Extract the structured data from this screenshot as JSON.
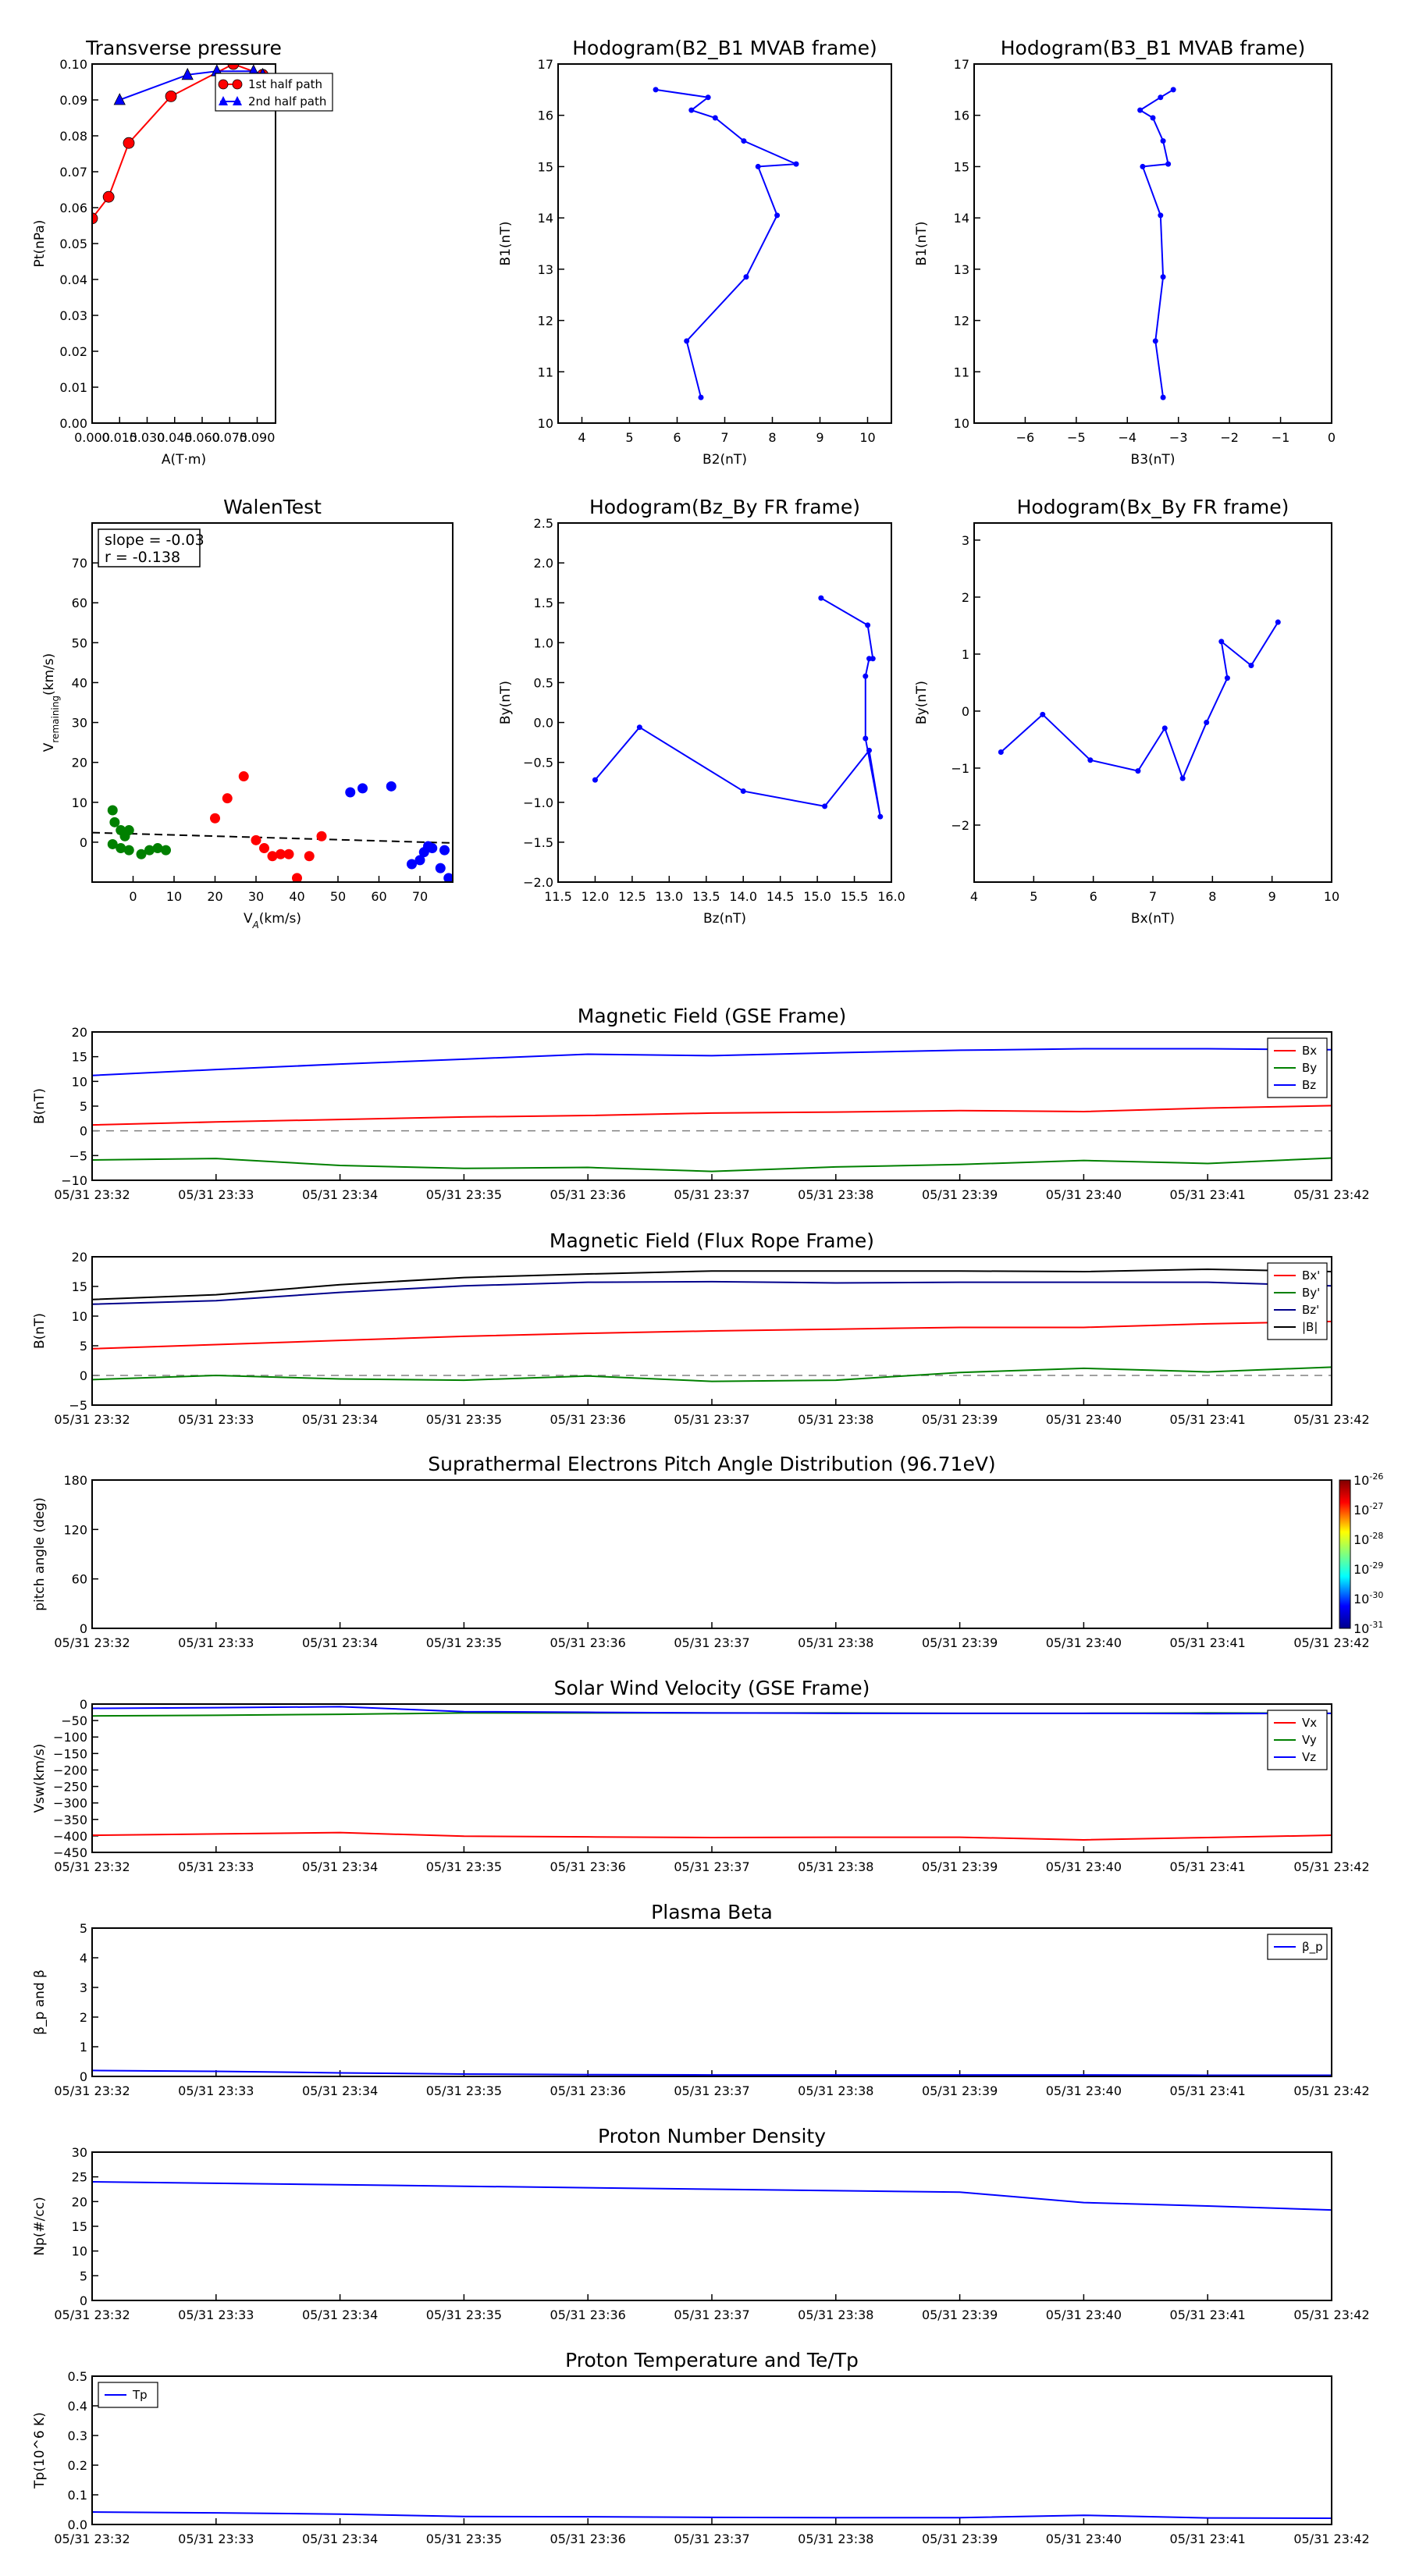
{
  "time_ticks": [
    "05/31 23:32",
    "05/31 23:33",
    "05/31 23:34",
    "05/31 23:35",
    "05/31 23:36",
    "05/31 23:37",
    "05/31 23:38",
    "05/31 23:39",
    "05/31 23:40",
    "05/31 23:41",
    "05/31 23:42"
  ],
  "colors": {
    "red": "#ff0000",
    "green": "#008000",
    "blue": "#0000ff",
    "black": "#000000",
    "dashed": "#808080",
    "navy": "#00008b"
  },
  "chart_data": [
    {
      "id": "transverse-pressure",
      "type": "scatter",
      "title": "Transverse pressure",
      "xlabel": "A(T·m)",
      "ylabel": "Pt(nPa)",
      "xlim": [
        0,
        0.1
      ],
      "ylim": [
        0,
        0.1
      ],
      "xticks": [
        0,
        0.015,
        0.03,
        0.045,
        0.06,
        0.075,
        0.09
      ],
      "xtick_labels": [
        "0.000",
        "0.015",
        "0.030",
        "0.045",
        "0.060",
        "0.075",
        "0.090"
      ],
      "yticks": [
        0,
        0.01,
        0.02,
        0.03,
        0.04,
        0.05,
        0.06,
        0.07,
        0.08,
        0.09,
        0.1
      ],
      "ytick_labels": [
        "0.00",
        "0.01",
        "0.02",
        "0.03",
        "0.04",
        "0.05",
        "0.06",
        "0.07",
        "0.08",
        "0.09",
        "0.10"
      ],
      "legend_position": "top-center",
      "series": [
        {
          "name": "1st half path",
          "color": "red",
          "marker": "circle",
          "x": [
            0.0,
            0.009,
            0.02,
            0.043,
            0.077,
            0.093
          ],
          "y": [
            0.057,
            0.063,
            0.078,
            0.091,
            0.1,
            0.097
          ]
        },
        {
          "name": "2nd half path",
          "color": "blue",
          "marker": "triangle",
          "x": [
            0.015,
            0.052,
            0.068,
            0.088,
            0.093
          ],
          "y": [
            0.09,
            0.097,
            0.098,
            0.098,
            0.097
          ]
        }
      ]
    },
    {
      "id": "hodogram-b2-b1",
      "type": "line",
      "title": "Hodogram(B2_B1 MVAB frame)",
      "xlabel": "B2(nT)",
      "ylabel": "B1(nT)",
      "xlim": [
        3.5,
        10.5
      ],
      "ylim": [
        10,
        17
      ],
      "xticks": [
        4,
        5,
        6,
        7,
        8,
        9,
        10
      ],
      "xtick_labels": [
        "4",
        "5",
        "6",
        "7",
        "8",
        "9",
        "10"
      ],
      "yticks": [
        10,
        11,
        12,
        13,
        14,
        15,
        16,
        17
      ],
      "ytick_labels": [
        "10",
        "11",
        "12",
        "13",
        "14",
        "15",
        "16",
        "17"
      ],
      "series": [
        {
          "name": "B2_B1",
          "color": "blue",
          "marker": "dot",
          "x": [
            6.5,
            6.2,
            7.45,
            8.1,
            7.7,
            8.5,
            7.4,
            6.8,
            6.3,
            6.65,
            5.55
          ],
          "y": [
            10.5,
            11.6,
            12.85,
            14.05,
            15.0,
            15.05,
            15.5,
            15.95,
            16.1,
            16.35,
            16.5
          ]
        }
      ]
    },
    {
      "id": "hodogram-b3-b1",
      "type": "line",
      "title": "Hodogram(B3_B1 MVAB frame)",
      "xlabel": "B3(nT)",
      "ylabel": "B1(nT)",
      "xlim": [
        -7,
        0
      ],
      "ylim": [
        10,
        17
      ],
      "xticks": [
        -6,
        -5,
        -4,
        -3,
        -2,
        -1,
        0
      ],
      "xtick_labels": [
        "−6",
        "−5",
        "−4",
        "−3",
        "−2",
        "−1",
        "0"
      ],
      "yticks": [
        10,
        11,
        12,
        13,
        14,
        15,
        16,
        17
      ],
      "ytick_labels": [
        "10",
        "11",
        "12",
        "13",
        "14",
        "15",
        "16",
        "17"
      ],
      "series": [
        {
          "name": "B3_B1",
          "color": "blue",
          "marker": "dot",
          "x": [
            -3.3,
            -3.45,
            -3.3,
            -3.35,
            -3.7,
            -3.2,
            -3.3,
            -3.5,
            -3.75,
            -3.35,
            -3.1
          ],
          "y": [
            10.5,
            11.6,
            12.85,
            14.05,
            15.0,
            15.05,
            15.5,
            15.95,
            16.1,
            16.35,
            16.5
          ]
        }
      ]
    },
    {
      "id": "walen-test",
      "type": "scatter",
      "title": "WalenTest",
      "xlabel": "V_A(km/s)",
      "ylabel": "V_remaining(km/s)",
      "xlim": [
        -10,
        78
      ],
      "ylim": [
        -10,
        80
      ],
      "xticks": [
        0,
        10,
        20,
        30,
        40,
        50,
        60,
        70
      ],
      "xtick_labels": [
        "0",
        "10",
        "20",
        "30",
        "40",
        "50",
        "60",
        "70"
      ],
      "yticks": [
        0,
        10,
        20,
        30,
        40,
        50,
        60,
        70
      ],
      "ytick_labels": [
        "0",
        "10",
        "20",
        "30",
        "40",
        "50",
        "60",
        "70"
      ],
      "annotation": [
        "slope = -0.03",
        "r = -0.138"
      ],
      "fit_line": {
        "x": [
          -10,
          78
        ],
        "y": [
          2.4,
          -0.2
        ],
        "style": "dashed",
        "color": "black"
      },
      "series": [
        {
          "name": "green",
          "color": "green",
          "x": [
            -5,
            -4.5,
            -3,
            -2,
            -1,
            -5,
            -3,
            -1,
            2,
            4,
            6,
            8
          ],
          "y": [
            8,
            5,
            3,
            1.5,
            3,
            -0.5,
            -1.5,
            -2,
            -3,
            -2,
            -1.5,
            -2
          ]
        },
        {
          "name": "red",
          "color": "red",
          "x": [
            20,
            23,
            27,
            30,
            32,
            34,
            36,
            38,
            40,
            43,
            46
          ],
          "y": [
            6,
            11,
            16.5,
            0.5,
            -1.5,
            -3.5,
            -3,
            -3,
            -9,
            -3.5,
            1.5
          ]
        },
        {
          "name": "blue",
          "color": "blue",
          "x": [
            53,
            56,
            63,
            68,
            70,
            71,
            72,
            73,
            75,
            76,
            77
          ],
          "y": [
            12.5,
            13.5,
            14,
            -5.5,
            -4.5,
            -2.5,
            -1,
            -1.5,
            -6.5,
            -2,
            -9
          ]
        }
      ]
    },
    {
      "id": "hodogram-bz-by",
      "type": "line",
      "title": "Hodogram(Bz_By FR frame)",
      "xlabel": "Bz(nT)",
      "ylabel": "By(nT)",
      "xlim": [
        11.5,
        16
      ],
      "ylim": [
        -2,
        2.5
      ],
      "xticks": [
        11.5,
        12,
        12.5,
        13,
        13.5,
        14,
        14.5,
        15,
        15.5,
        16
      ],
      "xtick_labels": [
        "11.5",
        "12.0",
        "12.5",
        "13.0",
        "13.5",
        "14.0",
        "14.5",
        "15.0",
        "15.5",
        "16.0"
      ],
      "yticks": [
        -2,
        -1.5,
        -1,
        -0.5,
        0,
        0.5,
        1,
        1.5,
        2,
        2.5
      ],
      "ytick_labels": [
        "−2.0",
        "−1.5",
        "−1.0",
        "−0.5",
        "0.0",
        "0.5",
        "1.0",
        "1.5",
        "2.0",
        "2.5"
      ],
      "series": [
        {
          "name": "Bz_By",
          "color": "blue",
          "marker": "dot",
          "x": [
            12.0,
            12.6,
            14.0,
            15.1,
            15.7,
            15.85,
            15.65,
            15.65,
            15.7,
            15.75,
            15.68,
            15.05
          ],
          "y": [
            -0.72,
            -0.06,
            -0.86,
            -1.05,
            -0.35,
            -1.18,
            -0.2,
            0.58,
            0.8,
            0.8,
            1.22,
            1.56
          ]
        }
      ]
    },
    {
      "id": "hodogram-bx-by",
      "type": "line",
      "title": "Hodogram(Bx_By FR frame)",
      "xlabel": "Bx(nT)",
      "ylabel": "By(nT)",
      "xlim": [
        4,
        10
      ],
      "ylim": [
        -3,
        3.3
      ],
      "xticks": [
        4,
        5,
        6,
        7,
        8,
        9,
        10
      ],
      "xtick_labels": [
        "4",
        "5",
        "6",
        "7",
        "8",
        "9",
        "10"
      ],
      "yticks": [
        -2,
        -1,
        0,
        1,
        2,
        3
      ],
      "ytick_labels": [
        "−2",
        "−1",
        "0",
        "1",
        "2",
        "3"
      ],
      "series": [
        {
          "name": "Bx_By",
          "color": "blue",
          "marker": "dot",
          "x": [
            4.45,
            5.15,
            5.95,
            6.75,
            7.2,
            7.5,
            7.9,
            8.25,
            8.15,
            8.65,
            9.1
          ],
          "y": [
            -0.72,
            -0.06,
            -0.86,
            -1.05,
            -0.3,
            -1.18,
            -0.2,
            0.58,
            1.22,
            0.8,
            1.56
          ]
        }
      ]
    },
    {
      "id": "mag-gse",
      "type": "line",
      "title": "Magnetic Field (GSE Frame)",
      "ylabel": "B(nT)",
      "ylim": [
        -10,
        20
      ],
      "yticks": [
        -10,
        -5,
        0,
        5,
        10,
        15,
        20
      ],
      "ytick_labels": [
        "−10",
        "−5",
        "0",
        "5",
        "10",
        "15",
        "20"
      ],
      "legend_position": "top-right",
      "zero_line": true,
      "series": [
        {
          "name": "Bx",
          "color": "red",
          "values": [
            1.2,
            1.8,
            2.3,
            2.8,
            3.1,
            3.6,
            3.8,
            4.1,
            3.9,
            4.6,
            5.1
          ]
        },
        {
          "name": "By",
          "color": "green",
          "values": [
            -5.9,
            -5.6,
            -7.0,
            -7.6,
            -7.4,
            -8.2,
            -7.3,
            -6.8,
            -6.0,
            -6.6,
            -5.5
          ]
        },
        {
          "name": "Bz",
          "color": "blue",
          "values": [
            11.2,
            12.4,
            13.5,
            14.5,
            15.5,
            15.2,
            15.8,
            16.3,
            16.6,
            16.6,
            16.4
          ]
        }
      ]
    },
    {
      "id": "mag-fr",
      "type": "line",
      "title": "Magnetic Field (Flux Rope Frame)",
      "ylabel": "B(nT)",
      "ylim": [
        -5,
        20
      ],
      "yticks": [
        -5,
        0,
        5,
        10,
        15,
        20
      ],
      "ytick_labels": [
        "−5",
        "0",
        "5",
        "10",
        "15",
        "20"
      ],
      "legend_position": "top-right",
      "zero_line": true,
      "series": [
        {
          "name": "Bx'",
          "color": "red",
          "values": [
            4.5,
            5.2,
            5.9,
            6.6,
            7.1,
            7.5,
            7.8,
            8.1,
            8.1,
            8.7,
            9.1
          ]
        },
        {
          "name": "By'",
          "color": "green",
          "values": [
            -0.7,
            0.0,
            -0.6,
            -0.8,
            -0.1,
            -1.0,
            -0.8,
            0.5,
            1.2,
            0.6,
            1.4
          ]
        },
        {
          "name": "Bz'",
          "color": "navy",
          "values": [
            12.0,
            12.6,
            14.0,
            15.1,
            15.7,
            15.8,
            15.6,
            15.7,
            15.7,
            15.7,
            15.1
          ]
        },
        {
          "name": "|B|",
          "color": "black",
          "values": [
            12.8,
            13.6,
            15.3,
            16.5,
            17.1,
            17.6,
            17.6,
            17.6,
            17.5,
            17.9,
            17.5
          ]
        }
      ]
    },
    {
      "id": "pitch-angle",
      "type": "heatmap",
      "title": "Suprathermal Electrons Pitch Angle Distribution (96.71eV)",
      "ylabel": "pitch angle (deg)",
      "ylim": [
        0,
        180
      ],
      "yticks": [
        0,
        60,
        120,
        180
      ],
      "ytick_labels": [
        "0",
        "60",
        "120",
        "180"
      ],
      "colorbar_labels": [
        "10^-26",
        "10^-27",
        "10^-28",
        "10^-29",
        "10^-30",
        "10^-31"
      ],
      "values": []
    },
    {
      "id": "solar-wind",
      "type": "line",
      "title": "Solar Wind Velocity (GSE Frame)",
      "ylabel": "Vsw(km/s)",
      "ylim": [
        -450,
        0
      ],
      "yticks": [
        -450,
        -400,
        -350,
        -300,
        -250,
        -200,
        -150,
        -100,
        -50,
        0
      ],
      "ytick_labels": [
        "−450",
        "−400",
        "−350",
        "−300",
        "−250",
        "−200",
        "−150",
        "−100",
        "−50",
        "0"
      ],
      "legend_position": "top-right",
      "series": [
        {
          "name": "Vx",
          "color": "red",
          "values": [
            -398,
            -394,
            -390,
            -401,
            -403,
            -405,
            -404,
            -404,
            -412,
            -405,
            -398
          ]
        },
        {
          "name": "Vy",
          "color": "green",
          "values": [
            -36,
            -34,
            -31,
            -27,
            -27,
            -27,
            -27,
            -28,
            -28,
            -27,
            -28
          ]
        },
        {
          "name": "Vz",
          "color": "blue",
          "values": [
            -13,
            -11,
            -8,
            -23,
            -25,
            -27,
            -28,
            -28,
            -28,
            -29,
            -28
          ]
        }
      ]
    },
    {
      "id": "plasma-beta",
      "type": "line",
      "title": "Plasma Beta",
      "ylabel": "β_p and β",
      "ylim": [
        0,
        5
      ],
      "yticks": [
        0,
        1,
        2,
        3,
        4,
        5
      ],
      "ytick_labels": [
        "0",
        "1",
        "2",
        "3",
        "4",
        "5"
      ],
      "legend_position": "top-right",
      "series": [
        {
          "name": "β_p",
          "color": "blue",
          "values": [
            0.2,
            0.17,
            0.12,
            0.08,
            0.06,
            0.05,
            0.05,
            0.05,
            0.05,
            0.04,
            0.04
          ]
        }
      ]
    },
    {
      "id": "proton-density",
      "type": "line",
      "title": "Proton Number Density",
      "ylabel": "Np(#/cc)",
      "ylim": [
        0,
        30
      ],
      "yticks": [
        0,
        5,
        10,
        15,
        20,
        25,
        30
      ],
      "ytick_labels": [
        "0",
        "5",
        "10",
        "15",
        "20",
        "25",
        "30"
      ],
      "series": [
        {
          "name": "Np",
          "color": "blue",
          "values": [
            24,
            23.7,
            23.4,
            23.1,
            22.8,
            22.5,
            22.2,
            21.9,
            19.8,
            19.1,
            18.3
          ]
        }
      ]
    },
    {
      "id": "proton-temp",
      "type": "line",
      "title": "Proton Temperature and Te/Tp",
      "ylabel": "Tp(10^6 K)",
      "ylim": [
        0,
        0.5
      ],
      "yticks": [
        0,
        0.1,
        0.2,
        0.3,
        0.4,
        0.5
      ],
      "ytick_labels": [
        "0.0",
        "0.1",
        "0.2",
        "0.3",
        "0.4",
        "0.5"
      ],
      "legend_position": "top-left",
      "series": [
        {
          "name": "Tp",
          "color": "blue",
          "values": [
            0.042,
            0.039,
            0.035,
            0.027,
            0.026,
            0.024,
            0.023,
            0.023,
            0.031,
            0.022,
            0.021
          ]
        }
      ]
    }
  ]
}
